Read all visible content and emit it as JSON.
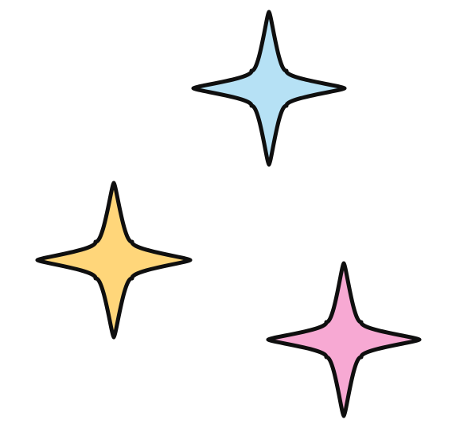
{
  "background_color": "#ffffff",
  "outline_color": "#0f0f0f",
  "sparkles": [
    {
      "icon": "four-point-sparkle-icon",
      "color": "#b6e1f5"
    },
    {
      "icon": "four-point-sparkle-icon",
      "color": "#ffd67a"
    },
    {
      "icon": "four-point-sparkle-icon",
      "color": "#f7a9d3"
    }
  ]
}
